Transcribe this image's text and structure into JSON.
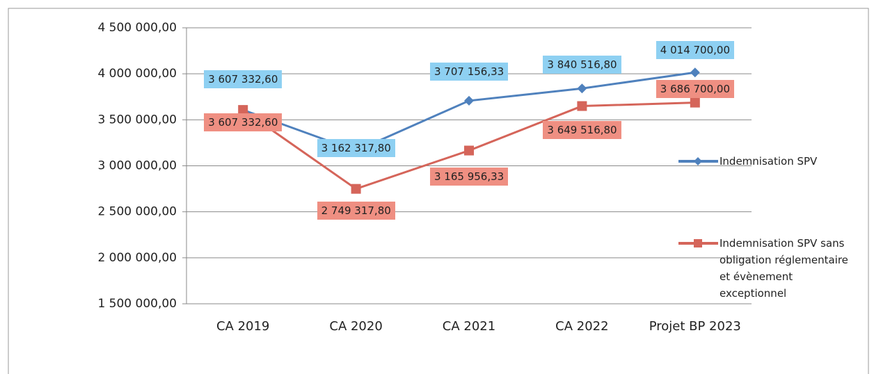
{
  "chart_data": {
    "type": "line",
    "categories": [
      "CA 2019",
      "CA 2020",
      "CA 2021",
      "CA 2022",
      "Projet BP 2023"
    ],
    "series": [
      {
        "name": "Indemnisation SPV",
        "color": "#4f81bd",
        "label_color": "#8ed0f2",
        "marker": "diamond",
        "values": [
          3607332.6,
          3162317.8,
          3707156.33,
          3840516.8,
          4014700.0
        ],
        "value_labels": [
          "3 607 332,60",
          "3 162 317,80",
          "3 707 156,33",
          "3 840 516,80",
          "4 014 700,00"
        ]
      },
      {
        "name": "Indemnisation SPV sans obligation réglementaire et évènement exceptionnel",
        "color": "#d5655a",
        "label_color": "#ef8f82",
        "marker": "square",
        "values": [
          3607332.6,
          2749317.8,
          3165956.33,
          3649516.8,
          3686700.0
        ],
        "value_labels": [
          "3 607 332,60",
          "2 749 317,80",
          "3 165 956,33",
          "3 649 516,80",
          "3 686 700,00"
        ]
      }
    ],
    "ylim": [
      1500000,
      4500000
    ],
    "yticks": [
      {
        "value": 1500000,
        "label": "1 500 000,00"
      },
      {
        "value": 2000000,
        "label": "2 000 000,00"
      },
      {
        "value": 2500000,
        "label": "2 500 000,00"
      },
      {
        "value": 3000000,
        "label": "3 000 000,00"
      },
      {
        "value": 3500000,
        "label": "3 500 000,00"
      },
      {
        "value": 4000000,
        "label": "4 000 000,00"
      },
      {
        "value": 4500000,
        "label": "4 500 000,00"
      }
    ],
    "grid": true
  }
}
